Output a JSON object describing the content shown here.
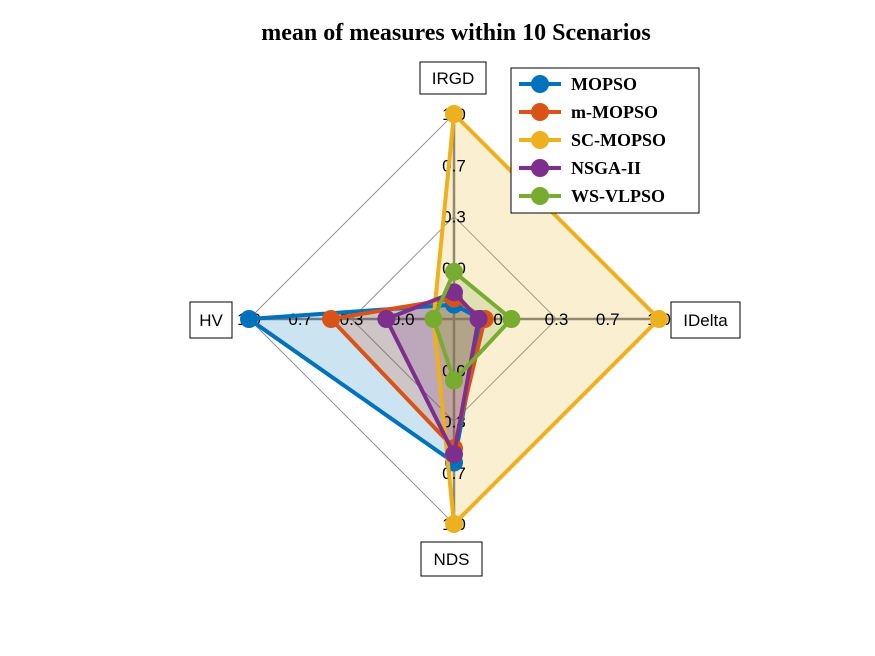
{
  "chart_data": {
    "type": "radar",
    "title": "mean of measures within 10 Scenarios",
    "axes": [
      "IRGD",
      "IDelta",
      "NDS",
      "HV"
    ],
    "tick_labels": [
      "0.0",
      "0.3",
      "0.7",
      "1.0"
    ],
    "range": [
      0,
      1
    ],
    "grid": true,
    "legend_position": "top-right",
    "series": [
      {
        "name": "MOPSO",
        "color": "#0072BD",
        "values": [
          0.07,
          0.13,
          0.7,
          1.0
        ]
      },
      {
        "name": "m-MOPSO",
        "color": "#D95319",
        "values": [
          0.1,
          0.15,
          0.63,
          0.6
        ]
      },
      {
        "name": "SC-MOPSO",
        "color": "#EDB120",
        "values": [
          1.0,
          1.0,
          1.0,
          0.1
        ]
      },
      {
        "name": "NSGA-II",
        "color": "#7E2F8E",
        "values": [
          0.13,
          0.12,
          0.66,
          0.33
        ]
      },
      {
        "name": "WS-VLPSO",
        "color": "#77AC30",
        "values": [
          0.23,
          0.28,
          0.3,
          0.1
        ]
      }
    ]
  }
}
